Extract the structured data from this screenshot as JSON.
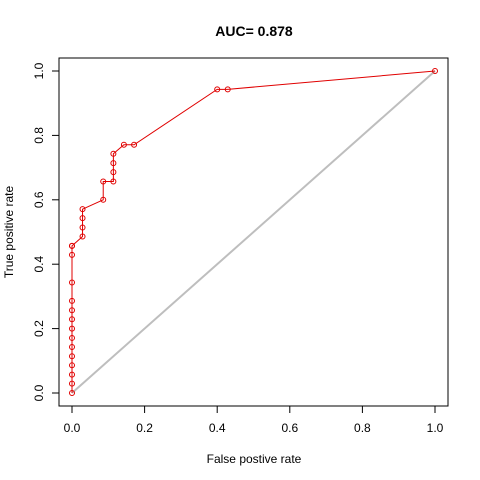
{
  "chart_data": {
    "type": "line",
    "title": "AUC= 0.878",
    "xlabel": "False postive rate",
    "ylabel": "True positive rate",
    "xlim": [
      0,
      1
    ],
    "ylim": [
      0,
      1
    ],
    "xticks": [
      "0.0",
      "0.2",
      "0.4",
      "0.6",
      "0.8",
      "1.0"
    ],
    "yticks": [
      "0.0",
      "0.2",
      "0.4",
      "0.6",
      "0.8",
      "1.0"
    ],
    "grid": false,
    "series": [
      {
        "color": "#e00000",
        "markers": "open-circle",
        "x": [
          0,
          0,
          0,
          0,
          0,
          0,
          0,
          0,
          0,
          0,
          0,
          0,
          0,
          0,
          0,
          0.029,
          0.029,
          0.029,
          0.029,
          0.086,
          0.086,
          0.114,
          0.114,
          0.114,
          0.114,
          0.143,
          0.171,
          0.4,
          0.429,
          1.0
        ],
        "y": [
          0,
          0.029,
          0.057,
          0.086,
          0.114,
          0.143,
          0.171,
          0.2,
          0.229,
          0.257,
          0.286,
          0.343,
          0.429,
          0.457,
          0.457,
          0.486,
          0.514,
          0.543,
          0.571,
          0.6,
          0.657,
          0.657,
          0.686,
          0.714,
          0.743,
          0.771,
          0.771,
          0.943,
          0.943,
          1.0
        ]
      },
      {
        "color": "#bebebe",
        "markers": "none",
        "x": [
          0,
          1
        ],
        "y": [
          0,
          1
        ]
      }
    ]
  }
}
